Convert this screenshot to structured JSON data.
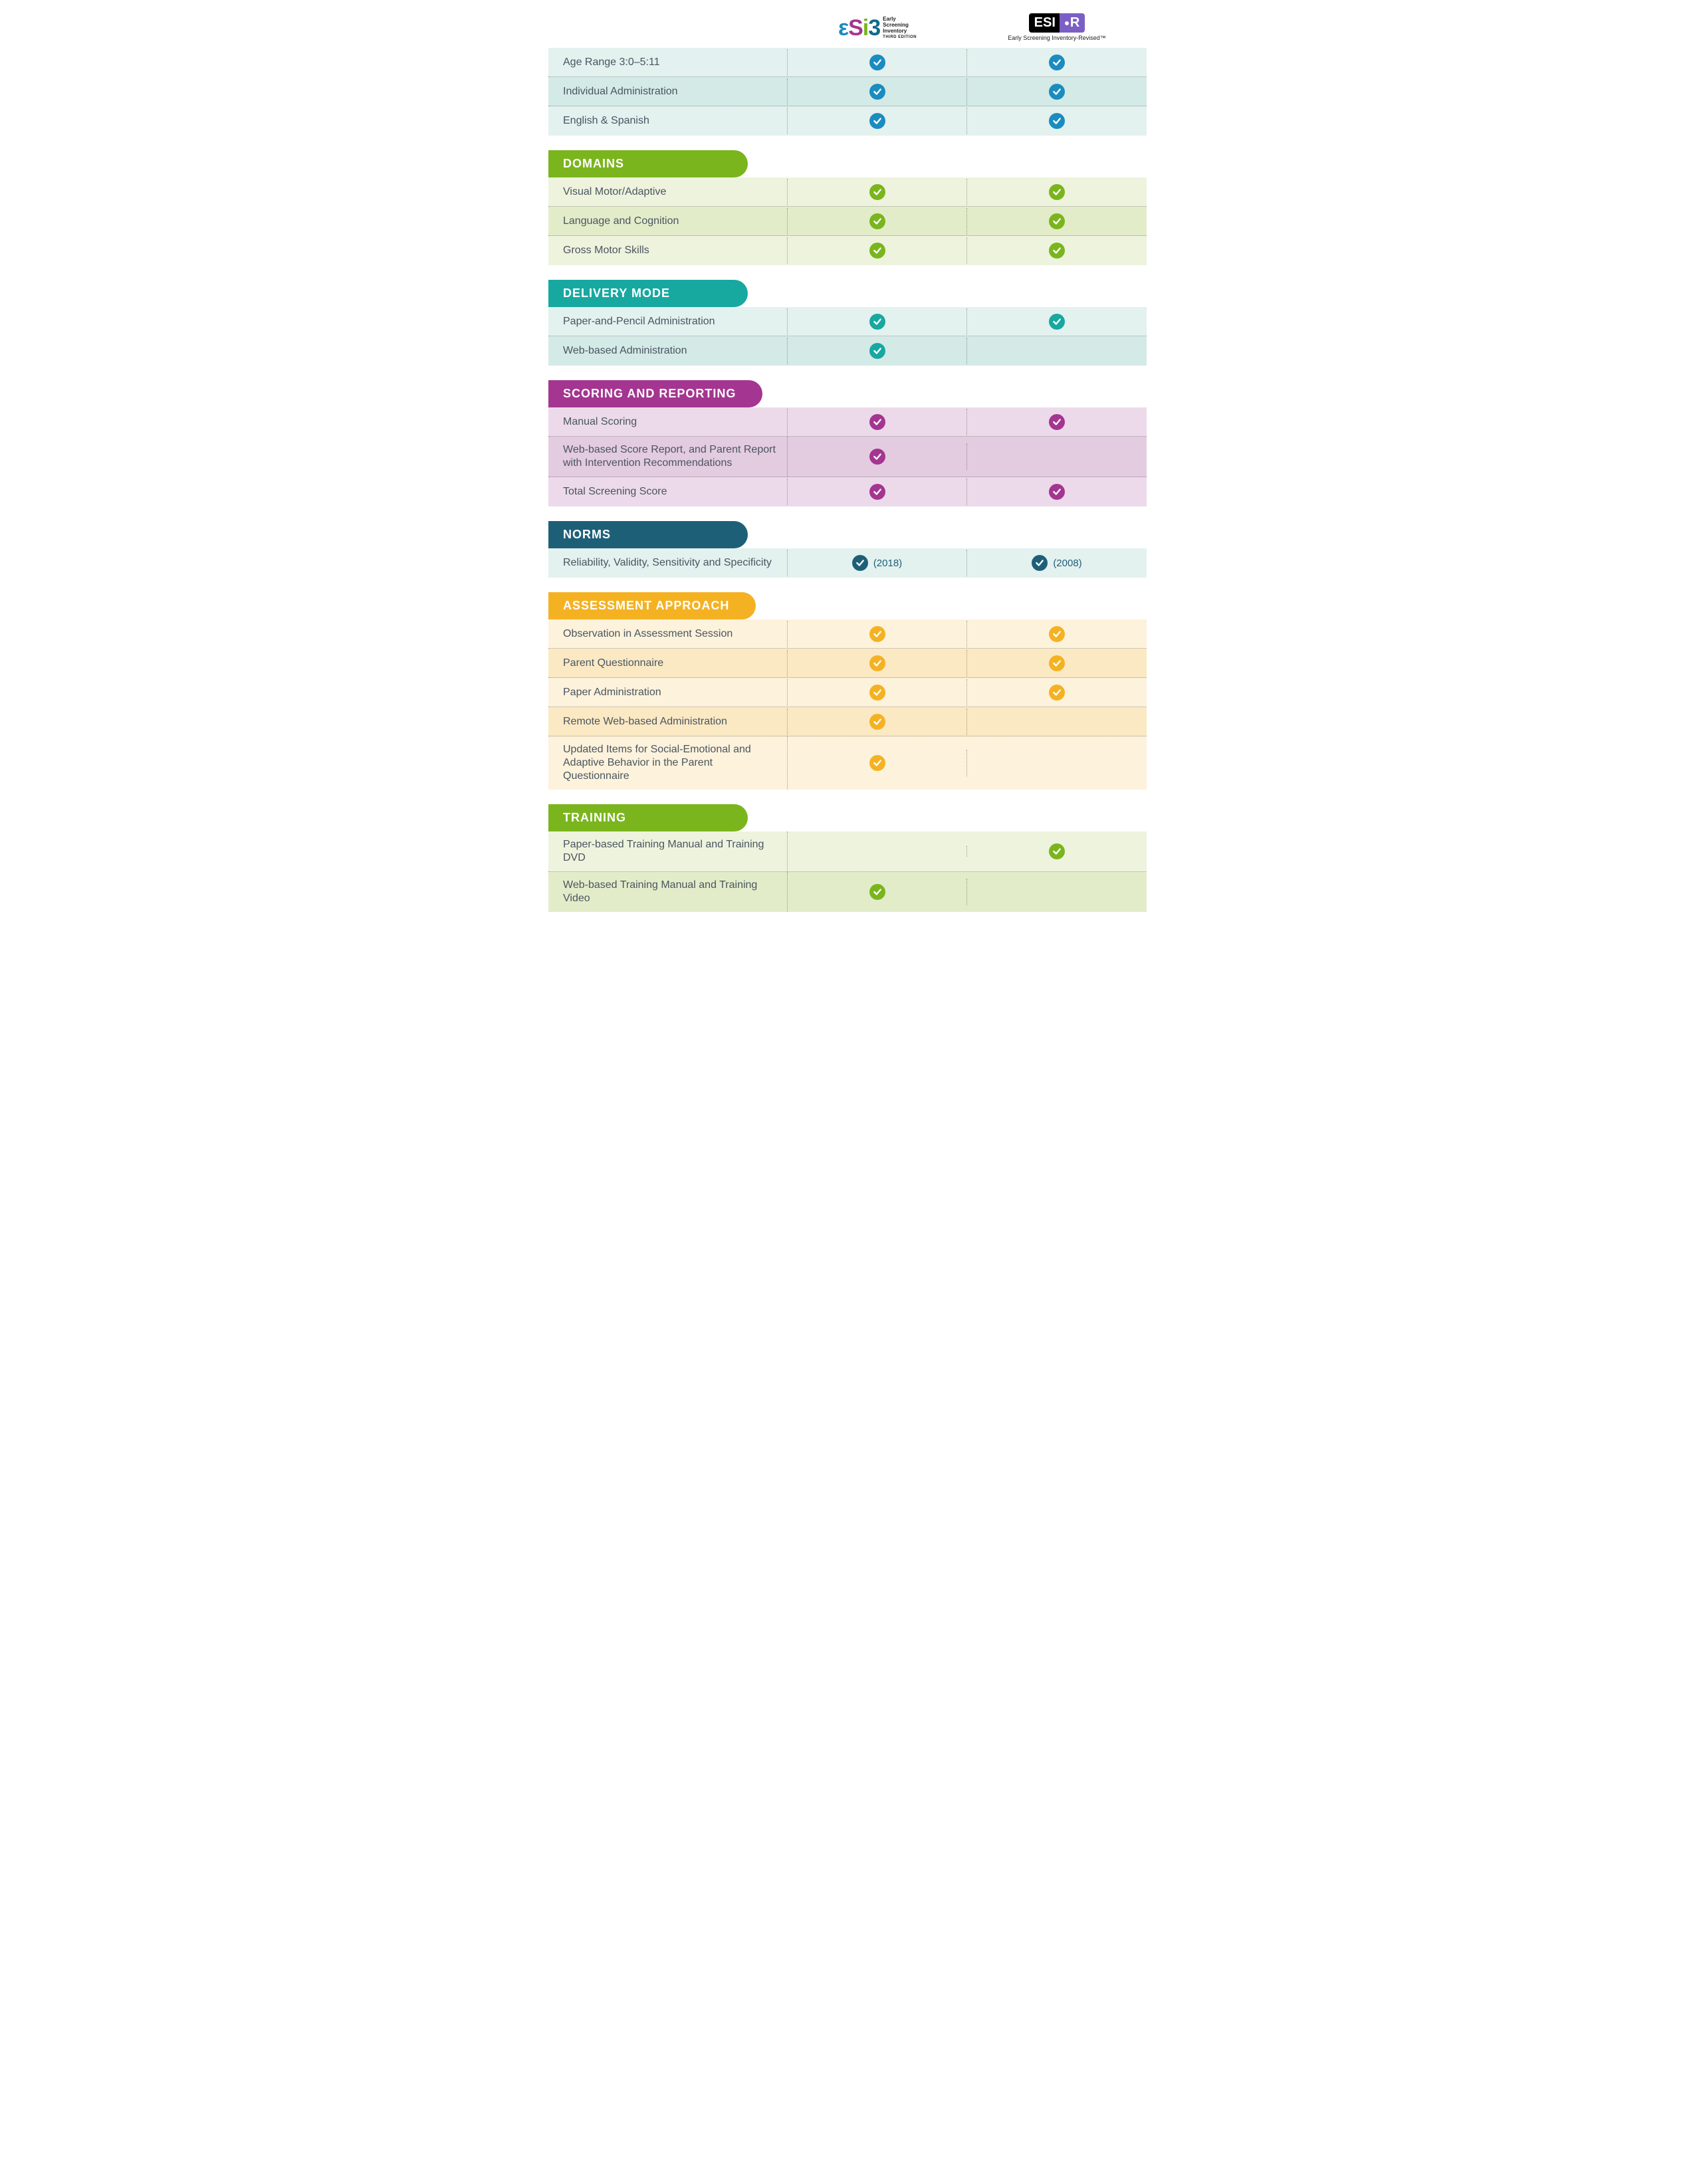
{
  "columns": {
    "col1": {
      "logo_text_e": "ε",
      "logo_text_s": "S",
      "logo_text_i": "i",
      "logo_text_3": "3",
      "logo_colors": {
        "e": "#1a8bbf",
        "s": "#a43590",
        "i": "#7ab51d",
        "three": "#0f6b8a"
      },
      "subtitle": "Early\nScreening\nInventory",
      "edition": "THIRD EDITION"
    },
    "col2": {
      "logo_left": "ESI",
      "logo_right": "R",
      "subtitle": "Early Screening Inventory-Revised™"
    }
  },
  "colors": {
    "intro_check": "#1b8cbf",
    "domains_header": "#7ab51d",
    "domains_check": "#7ab51d",
    "delivery_header": "#17a8a0",
    "delivery_check": "#17a8a0",
    "scoring_header": "#a43590",
    "scoring_check": "#a43590",
    "norms_header": "#1e5f78",
    "norms_check": "#1e5f78",
    "approach_header": "#f4b223",
    "approach_check": "#f4b223",
    "training_header": "#7ab51d",
    "training_check": "#7ab51d"
  },
  "sections": [
    {
      "id": "intro",
      "header": null,
      "check_color_key": "intro_check",
      "rows": [
        {
          "label": "Age Range 3:0–5:11",
          "c1": true,
          "c2": true
        },
        {
          "label": "Individual Administration",
          "c1": true,
          "c2": true
        },
        {
          "label": "English & Spanish",
          "c1": true,
          "c2": true
        }
      ]
    },
    {
      "id": "domains",
      "header": "DOMAINS",
      "header_color_key": "domains_header",
      "check_color_key": "domains_check",
      "rows": [
        {
          "label": "Visual Motor/Adaptive",
          "c1": true,
          "c2": true
        },
        {
          "label": "Language and Cognition",
          "c1": true,
          "c2": true
        },
        {
          "label": "Gross Motor Skills",
          "c1": true,
          "c2": true
        }
      ]
    },
    {
      "id": "delivery",
      "header": "DELIVERY MODE",
      "header_color_key": "delivery_header",
      "check_color_key": "delivery_check",
      "rows": [
        {
          "label": "Paper-and-Pencil Administration",
          "c1": true,
          "c2": true
        },
        {
          "label": "Web-based Administration",
          "c1": true,
          "c2": false
        }
      ]
    },
    {
      "id": "scoring",
      "header": "SCORING AND REPORTING",
      "header_color_key": "scoring_header",
      "check_color_key": "scoring_check",
      "rows": [
        {
          "label": "Manual Scoring",
          "c1": true,
          "c2": true
        },
        {
          "label": "Web-based Score Report, and Parent Report with Intervention Recommendations",
          "c1": true,
          "c2": false
        },
        {
          "label": "Total Screening Score",
          "c1": true,
          "c2": true
        }
      ]
    },
    {
      "id": "norms",
      "header": "NORMS",
      "header_color_key": "norms_header",
      "check_color_key": "norms_check",
      "rows": [
        {
          "label": "Reliability, Validity, Sensitivity and Specificity",
          "c1": true,
          "c1_note": "(2018)",
          "c2": true,
          "c2_note": "(2008)"
        }
      ]
    },
    {
      "id": "approach",
      "header": "ASSESSMENT APPROACH",
      "header_color_key": "approach_header",
      "check_color_key": "approach_check",
      "rows": [
        {
          "label": "Observation in Assessment Session",
          "c1": true,
          "c2": true
        },
        {
          "label": "Parent Questionnaire",
          "c1": true,
          "c2": true
        },
        {
          "label": "Paper Administration",
          "c1": true,
          "c2": true
        },
        {
          "label": "Remote Web-based Administration",
          "c1": true,
          "c2": false
        },
        {
          "label": "Updated Items for Social-Emotional and Adaptive Behavior in the Parent Questionnaire",
          "c1": true,
          "c2": false
        }
      ]
    },
    {
      "id": "training",
      "header": "TRAINING",
      "header_color_key": "training_header",
      "check_color_key": "training_check",
      "rows": [
        {
          "label": "Paper-based Training Manual and Training DVD",
          "c1": false,
          "c2": true
        },
        {
          "label": "Web-based Training Manual and Training Video",
          "c1": true,
          "c2": false
        }
      ]
    }
  ]
}
